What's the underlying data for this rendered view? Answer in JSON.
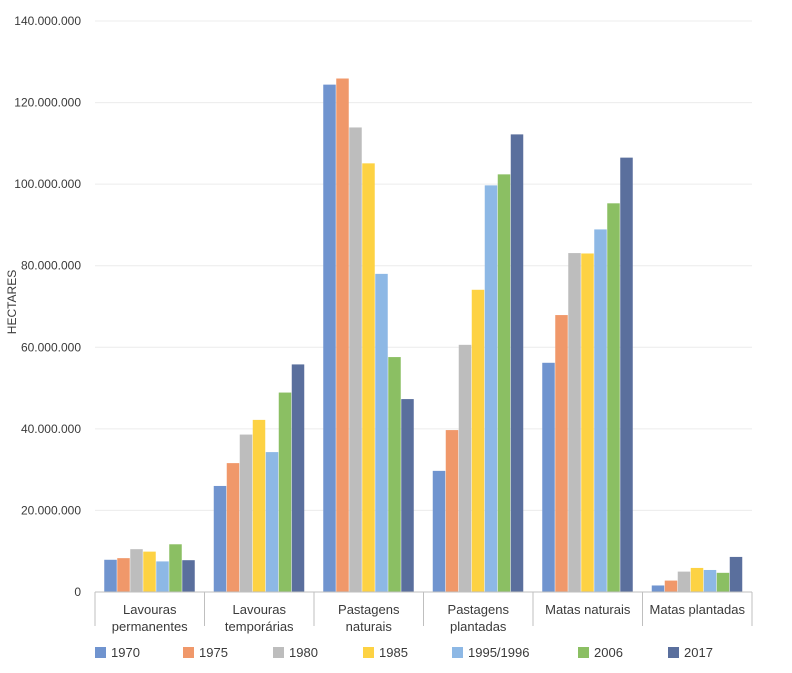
{
  "chart_data": {
    "type": "bar",
    "title": "",
    "xlabel": "",
    "ylabel": "HECTARES",
    "ylim": [
      0,
      140000000
    ],
    "yticks": [
      0,
      20000000,
      40000000,
      60000000,
      80000000,
      100000000,
      120000000,
      140000000
    ],
    "ytick_labels": [
      "0",
      "20.000.000",
      "40.000.000",
      "60.000.000",
      "80.000.000",
      "100.000.000",
      "120.000.000",
      "140.000.000"
    ],
    "grid": true,
    "legend_position": "bottom",
    "categories": [
      [
        "Lavouras",
        "permanentes"
      ],
      [
        "Lavouras",
        "temporárias"
      ],
      [
        "Pastagens",
        "naturais"
      ],
      [
        "Pastagens",
        "plantadas"
      ],
      [
        "Matas naturais"
      ],
      [
        "Matas plantadas"
      ]
    ],
    "series": [
      {
        "name": "1970",
        "color": "#7094cf",
        "values": [
          7900000,
          26000000,
          124400000,
          29700000,
          56200000,
          1600000
        ]
      },
      {
        "name": "1975",
        "color": "#f0986a",
        "values": [
          8300000,
          31600000,
          125900000,
          39700000,
          67900000,
          2800000
        ]
      },
      {
        "name": "1980",
        "color": "#bdbdbd",
        "values": [
          10500000,
          38600000,
          113900000,
          60600000,
          83100000,
          5000000
        ]
      },
      {
        "name": "1985",
        "color": "#fdd243",
        "values": [
          9900000,
          42200000,
          105100000,
          74100000,
          83000000,
          5900000
        ]
      },
      {
        "name": "1995/1996",
        "color": "#8db8e5",
        "values": [
          7500000,
          34300000,
          78000000,
          99700000,
          88900000,
          5400000
        ]
      },
      {
        "name": "2006",
        "color": "#8bbf63",
        "values": [
          11700000,
          48900000,
          57600000,
          102400000,
          95300000,
          4700000
        ]
      },
      {
        "name": "2017",
        "color": "#5a6f9d",
        "values": [
          7800000,
          55800000,
          47300000,
          112200000,
          106500000,
          8600000
        ]
      }
    ]
  }
}
